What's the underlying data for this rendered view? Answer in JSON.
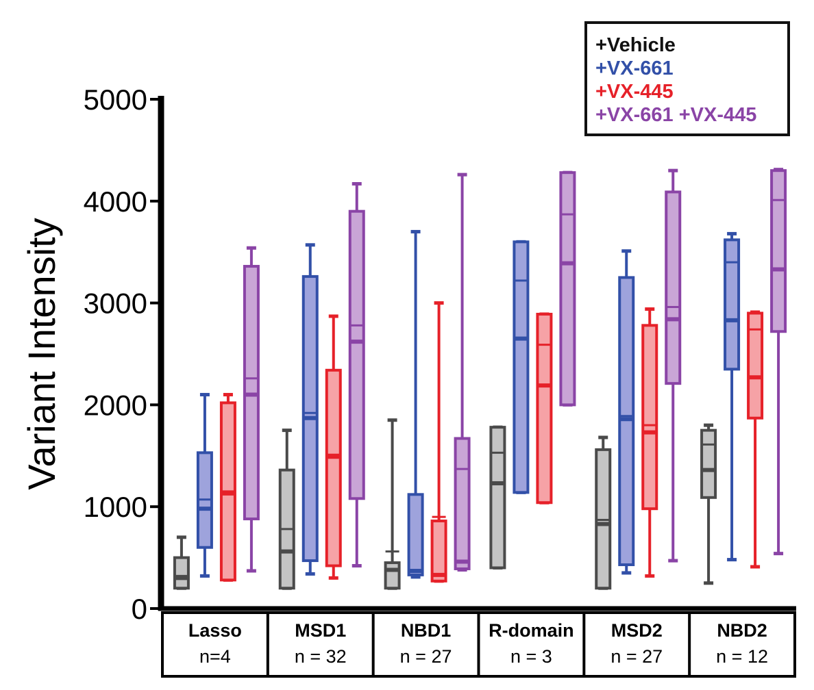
{
  "chart_data": {
    "type": "boxplot",
    "ylabel": "Variant Intensity",
    "xlabel": "",
    "ylim": [
      0,
      5000
    ],
    "yticks": [
      "0",
      "1000",
      "2000",
      "3000",
      "4000",
      "5000"
    ],
    "legend_position": "top-right",
    "series": [
      {
        "name": "+Vehicle",
        "color": "#4a4a4a",
        "fill": "#c4c4c4"
      },
      {
        "name": "+VX-661",
        "color": "#3250a8",
        "fill": "#9ea3dc"
      },
      {
        "name": "+VX-445",
        "color": "#e62129",
        "fill": "#f6a2a6"
      },
      {
        "name": "+VX-661 +VX-445",
        "color": "#8a44a6",
        "fill": "#c9a5d6"
      }
    ],
    "groups": [
      {
        "name": "Lasso",
        "n": "n=4",
        "boxes": [
          {
            "min": 200,
            "q1": 200,
            "median": 300,
            "mean": 320,
            "q3": 500,
            "max": 700
          },
          {
            "min": 320,
            "q1": 600,
            "median": 980,
            "mean": 1070,
            "q3": 1530,
            "max": 2100
          },
          {
            "min": 280,
            "q1": 280,
            "median": 1130,
            "mean": 1150,
            "q3": 2020,
            "max": 2100
          },
          {
            "min": 370,
            "q1": 880,
            "median": 2100,
            "mean": 2260,
            "q3": 3360,
            "max": 3540
          }
        ]
      },
      {
        "name": "MSD1",
        "n": "n = 32",
        "boxes": [
          {
            "min": 200,
            "q1": 200,
            "median": 560,
            "mean": 780,
            "q3": 1360,
            "max": 1750
          },
          {
            "min": 340,
            "q1": 470,
            "median": 1870,
            "mean": 1920,
            "q3": 3260,
            "max": 3570
          },
          {
            "min": 300,
            "q1": 420,
            "median": 1500,
            "mean": 1480,
            "q3": 2340,
            "max": 2870
          },
          {
            "min": 420,
            "q1": 1080,
            "median": 2620,
            "mean": 2780,
            "q3": 3900,
            "max": 4170
          }
        ]
      },
      {
        "name": "NBD1",
        "n": "n = 27",
        "boxes": [
          {
            "min": 200,
            "q1": 200,
            "median": 380,
            "mean": 560,
            "q3": 450,
            "max": 1850
          },
          {
            "min": 310,
            "q1": 330,
            "median": 370,
            "mean": 1120,
            "q3": 1120,
            "max": 3700
          },
          {
            "min": 270,
            "q1": 270,
            "median": 330,
            "mean": 900,
            "q3": 860,
            "max": 3000
          },
          {
            "min": 380,
            "q1": 390,
            "median": 460,
            "mean": 1370,
            "q3": 1670,
            "max": 4260
          }
        ]
      },
      {
        "name": "R-domain",
        "n": "n = 3",
        "boxes": [
          {
            "min": 400,
            "q1": 400,
            "median": 1230,
            "mean": 1530,
            "q3": 1780,
            "max": 1780
          },
          {
            "min": 1140,
            "q1": 1140,
            "median": 2650,
            "mean": 3220,
            "q3": 3600,
            "max": 3600
          },
          {
            "min": 1040,
            "q1": 1040,
            "median": 2190,
            "mean": 2590,
            "q3": 2890,
            "max": 2890
          },
          {
            "min": 2000,
            "q1": 2000,
            "median": 3390,
            "mean": 3870,
            "q3": 4280,
            "max": 4280
          }
        ]
      },
      {
        "name": "MSD2",
        "n": "n = 27",
        "boxes": [
          {
            "min": 200,
            "q1": 200,
            "median": 830,
            "mean": 870,
            "q3": 1560,
            "max": 1680
          },
          {
            "min": 350,
            "q1": 430,
            "median": 1860,
            "mean": 1890,
            "q3": 3250,
            "max": 3510
          },
          {
            "min": 320,
            "q1": 980,
            "median": 1730,
            "mean": 1800,
            "q3": 2780,
            "max": 2940
          },
          {
            "min": 470,
            "q1": 2210,
            "median": 2840,
            "mean": 2960,
            "q3": 4090,
            "max": 4300
          }
        ]
      },
      {
        "name": "NBD2",
        "n": "n = 12",
        "boxes": [
          {
            "min": 250,
            "q1": 1090,
            "median": 1360,
            "mean": 1610,
            "q3": 1750,
            "max": 1800
          },
          {
            "min": 480,
            "q1": 2350,
            "median": 2830,
            "mean": 3400,
            "q3": 3620,
            "max": 3680
          },
          {
            "min": 410,
            "q1": 1870,
            "median": 2270,
            "mean": 2740,
            "q3": 2900,
            "max": 2910
          },
          {
            "min": 540,
            "q1": 2720,
            "median": 3330,
            "mean": 4010,
            "q3": 4300,
            "max": 4310
          }
        ]
      }
    ]
  }
}
